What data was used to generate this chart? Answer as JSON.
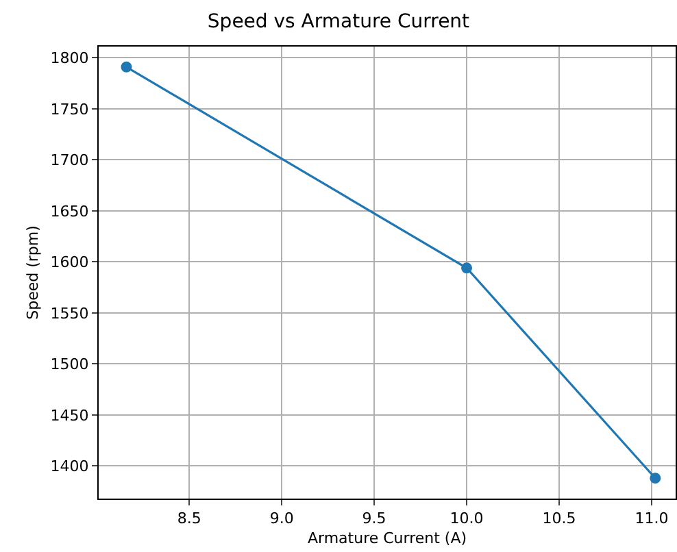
{
  "chart_data": {
    "type": "line",
    "title": "Speed vs Armature Current",
    "xlabel": "Armature Current (A)",
    "ylabel": "Speed (rpm)",
    "x": [
      8.16,
      10.0,
      11.02
    ],
    "series": [
      {
        "color": "#1f77b4",
        "values": [
          1791,
          1594,
          1388
        ]
      }
    ],
    "xlim": [
      8.01,
      11.13
    ],
    "xticks": [
      {
        "value": 8.5,
        "label": "8.5"
      },
      {
        "value": 9.0,
        "label": "9.0"
      },
      {
        "value": 9.5,
        "label": "9.5"
      },
      {
        "value": 10.0,
        "label": "10.0"
      },
      {
        "value": 10.5,
        "label": "10.5"
      },
      {
        "value": 11.0,
        "label": "11.0"
      }
    ],
    "ylim": [
      1368,
      1811
    ],
    "yticks": [
      1400,
      1450,
      1500,
      1550,
      1600,
      1650,
      1700,
      1750,
      1800
    ],
    "grid": true,
    "marker": "circle",
    "line_style": "solid"
  }
}
